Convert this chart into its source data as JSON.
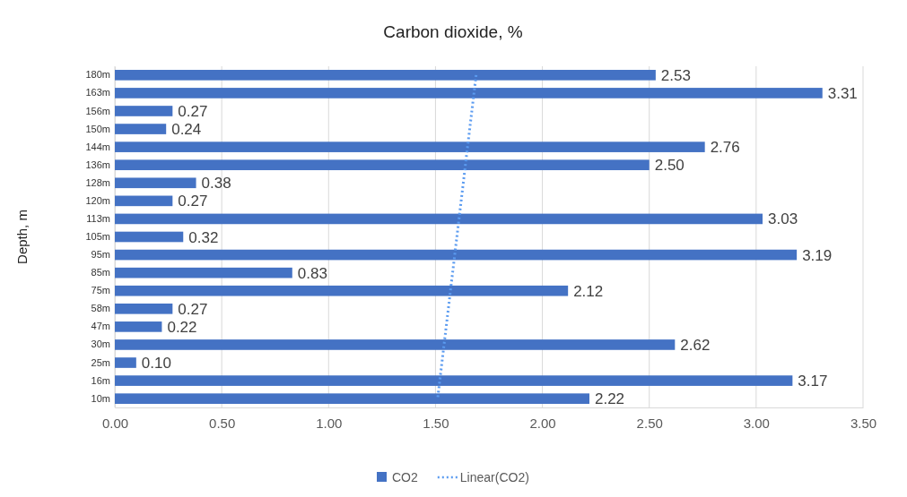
{
  "chart_data": {
    "type": "bar",
    "orientation": "horizontal",
    "title": "Carbon dioxide, %",
    "ylabel": "Depth, m",
    "categories": [
      "180m",
      "163m",
      "156m",
      "150m",
      "144m",
      "136m",
      "128m",
      "120m",
      "113m",
      "105m",
      "95m",
      "85m",
      "75m",
      "58m",
      "47m",
      "30m",
      "25m",
      "16m",
      "10m"
    ],
    "series": [
      {
        "name": "CO2",
        "type": "bar",
        "color": "#4472c4",
        "values": [
          2.53,
          3.31,
          0.27,
          0.24,
          2.76,
          2.5,
          0.38,
          0.27,
          3.03,
          0.32,
          3.19,
          0.83,
          2.12,
          0.27,
          0.22,
          2.62,
          0.1,
          3.17,
          2.22
        ],
        "value_labels": [
          "2.53",
          "3.31",
          "0.27",
          "0.24",
          "2.76",
          "2.50",
          "0.38",
          "0.27",
          "3.03",
          "0.32",
          "3.19",
          "0.83",
          "2.12",
          "0.27",
          "0.22",
          "2.62",
          "0.10",
          "3.17",
          "2.22"
        ]
      },
      {
        "name": "Linear(CO2)",
        "type": "line",
        "color": "#5b9bf0",
        "line_style": "dotted",
        "values": [
          1.69,
          1.68,
          1.67,
          1.66,
          1.65,
          1.64,
          1.63,
          1.62,
          1.61,
          1.6,
          1.59,
          1.58,
          1.57,
          1.56,
          1.55,
          1.54,
          1.53,
          1.52,
          1.51
        ]
      }
    ],
    "xlim": [
      0,
      3.5
    ],
    "xticks": [
      {
        "value": 0,
        "label": "0.00"
      },
      {
        "value": 0.5,
        "label": "0.50"
      },
      {
        "value": 1,
        "label": "1.00"
      },
      {
        "value": 1.5,
        "label": "1.50"
      },
      {
        "value": 2,
        "label": "2.00"
      },
      {
        "value": 2.5,
        "label": "2.50"
      },
      {
        "value": 3,
        "label": "3.00"
      },
      {
        "value": 3.5,
        "label": "3.50"
      }
    ],
    "grid": "x",
    "legend": "bottom"
  }
}
